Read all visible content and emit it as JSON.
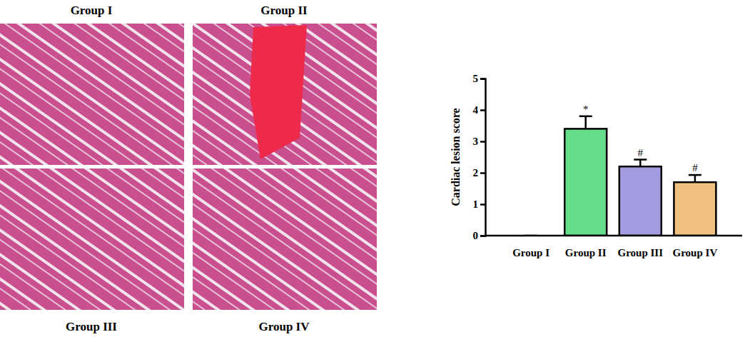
{
  "images": [
    {
      "label": "Group I"
    },
    {
      "label": "Group II"
    },
    {
      "label": "Group III"
    },
    {
      "label": "Group IV"
    }
  ],
  "chart_data": {
    "type": "bar",
    "categories": [
      "Group I",
      "Group II",
      "Group III",
      "Group IV"
    ],
    "values": [
      0,
      3.4,
      2.2,
      1.7
    ],
    "errors": [
      0,
      0.4,
      0.22,
      0.23
    ],
    "significance": [
      null,
      "*",
      "#",
      "#"
    ],
    "colors": [
      "#ffffff",
      "#66dd88",
      "#a39be0",
      "#f0c080"
    ],
    "y_label": "Cardiac lesion score",
    "ylim": [
      0,
      5
    ],
    "yticks": [
      0,
      1,
      2,
      3,
      4,
      5
    ],
    "grid": false
  }
}
